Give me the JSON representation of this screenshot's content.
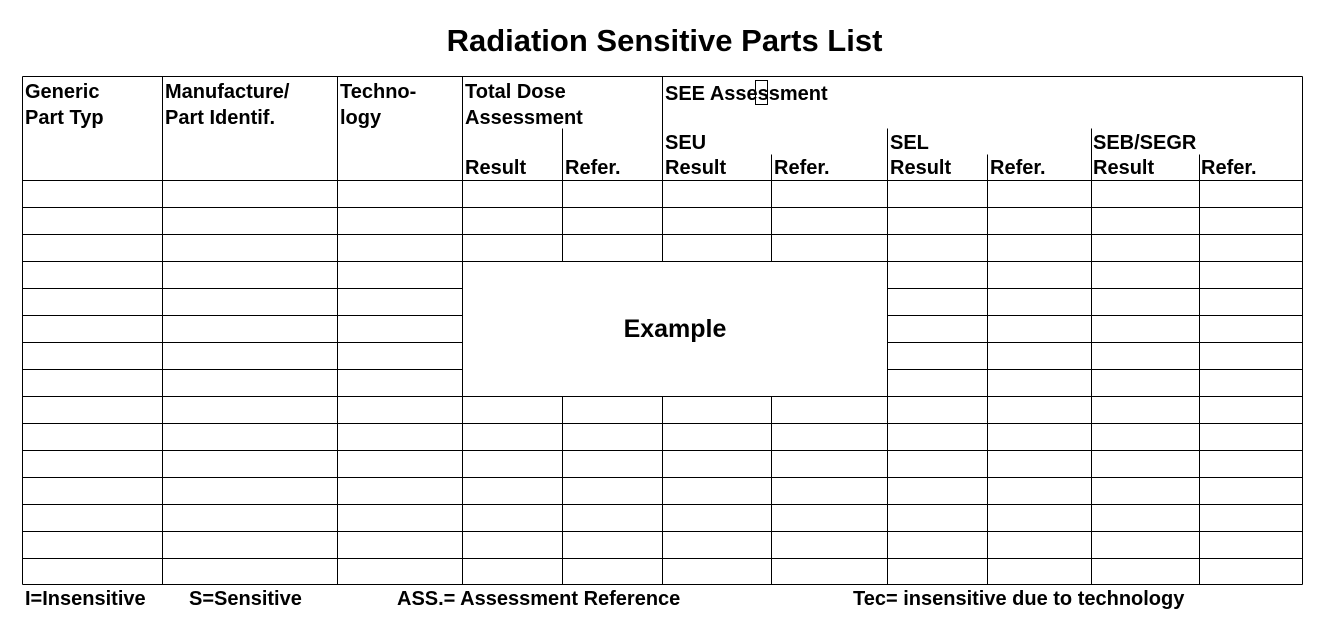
{
  "title": "Radiation Sensitive Parts List",
  "headers": {
    "generic": "Generic\nPart Typ",
    "manufacture": "Manufacture/\nPart Identif.",
    "technology": "Techno-\nlogy",
    "total_dose": "Total Dose\nAssessment",
    "see": "SEE Assessment",
    "seu": "SEU",
    "sel": "SEL",
    "seb": "SEB/SEGR",
    "result": "Result",
    "refer": "Refer."
  },
  "example_label": "Example",
  "legend": {
    "insensitive": "I=Insensitive",
    "sensitive": "S=Sensitive",
    "assessment": "ASS.= Assessment Reference",
    "technology": "Tec= insensitive due to technology"
  },
  "colors": {
    "line": "#000000",
    "background": "#ffffff"
  }
}
